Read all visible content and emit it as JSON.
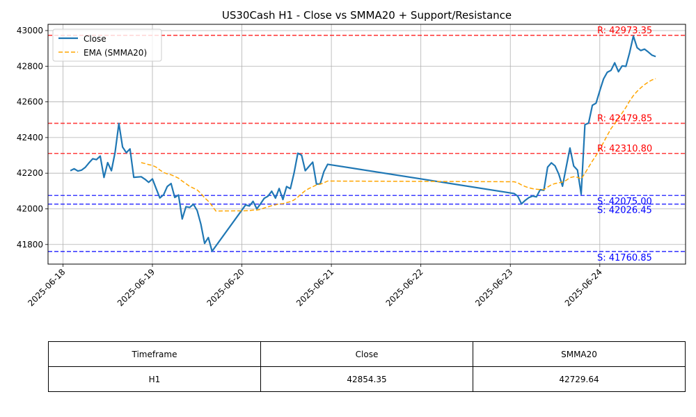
{
  "chart_data": {
    "type": "line",
    "title": "US30Cash H1 - Close vs SMMA20 + Support/Resistance",
    "xlabel": "",
    "ylabel": "",
    "x_ticks": [
      "2025-06-18",
      "2025-06-19",
      "2025-06-20",
      "2025-06-21",
      "2025-06-22",
      "2025-06-23",
      "2025-06-24"
    ],
    "y_ticks": [
      41800,
      42000,
      42200,
      42400,
      42600,
      42800,
      43000
    ],
    "xlim": [
      "2025-06-17 20:00",
      "2025-06-24 23:00"
    ],
    "ylim": [
      41690,
      43035
    ],
    "grid": true,
    "legend_position": "top-left",
    "series": [
      {
        "name": "Close",
        "color": "#1f77b4",
        "style": "solid",
        "points": [
          [
            "2025-06-18 02:00",
            42214
          ],
          [
            "2025-06-18 03:00",
            42225
          ],
          [
            "2025-06-18 04:00",
            42212
          ],
          [
            "2025-06-18 05:00",
            42217
          ],
          [
            "2025-06-18 06:00",
            42233
          ],
          [
            "2025-06-18 07:00",
            42258
          ],
          [
            "2025-06-18 08:00",
            42281
          ],
          [
            "2025-06-18 09:00",
            42276
          ],
          [
            "2025-06-18 10:00",
            42296
          ],
          [
            "2025-06-18 11:00",
            42176
          ],
          [
            "2025-06-18 12:00",
            42259
          ],
          [
            "2025-06-18 13:00",
            42214
          ],
          [
            "2025-06-18 14:00",
            42318
          ],
          [
            "2025-06-18 15:00",
            42479
          ],
          [
            "2025-06-18 16:00",
            42347
          ],
          [
            "2025-06-18 17:00",
            42315
          ],
          [
            "2025-06-18 18:00",
            42336
          ],
          [
            "2025-06-18 19:00",
            42177
          ],
          [
            "2025-06-18 21:00",
            42180
          ],
          [
            "2025-06-18 22:00",
            42166
          ],
          [
            "2025-06-18 23:00",
            42149
          ],
          [
            "2025-06-19 00:00",
            42168
          ],
          [
            "2025-06-19 01:00",
            42114
          ],
          [
            "2025-06-19 02:00",
            42061
          ],
          [
            "2025-06-19 03:00",
            42079
          ],
          [
            "2025-06-19 04:00",
            42126
          ],
          [
            "2025-06-19 05:00",
            42142
          ],
          [
            "2025-06-19 06:00",
            42064
          ],
          [
            "2025-06-19 07:00",
            42078
          ],
          [
            "2025-06-19 08:00",
            41943
          ],
          [
            "2025-06-19 09:00",
            42012
          ],
          [
            "2025-06-19 10:00",
            42008
          ],
          [
            "2025-06-19 11:00",
            42026
          ],
          [
            "2025-06-19 12:00",
            41990
          ],
          [
            "2025-06-19 13:00",
            41914
          ],
          [
            "2025-06-19 14:00",
            41806
          ],
          [
            "2025-06-19 15:00",
            41839
          ],
          [
            "2025-06-19 16:00",
            41762
          ],
          [
            "2025-06-20 01:00",
            42022
          ],
          [
            "2025-06-20 02:00",
            42016
          ],
          [
            "2025-06-20 03:00",
            42042
          ],
          [
            "2025-06-20 04:00",
            42000
          ],
          [
            "2025-06-20 05:00",
            42028
          ],
          [
            "2025-06-20 06:00",
            42059
          ],
          [
            "2025-06-20 07:00",
            42071
          ],
          [
            "2025-06-20 08:00",
            42099
          ],
          [
            "2025-06-20 09:00",
            42060
          ],
          [
            "2025-06-20 10:00",
            42114
          ],
          [
            "2025-06-20 11:00",
            42052
          ],
          [
            "2025-06-20 12:00",
            42125
          ],
          [
            "2025-06-20 13:00",
            42113
          ],
          [
            "2025-06-20 14:00",
            42201
          ],
          [
            "2025-06-20 15:00",
            42312
          ],
          [
            "2025-06-20 16:00",
            42301
          ],
          [
            "2025-06-20 17:00",
            42214
          ],
          [
            "2025-06-20 18:00",
            42238
          ],
          [
            "2025-06-20 19:00",
            42262
          ],
          [
            "2025-06-20 20:00",
            42139
          ],
          [
            "2025-06-20 21:00",
            42140
          ],
          [
            "2025-06-20 22:00",
            42209
          ],
          [
            "2025-06-20 23:00",
            42250
          ],
          [
            "2025-06-23 01:00",
            42086
          ],
          [
            "2025-06-23 02:00",
            42071
          ],
          [
            "2025-06-23 03:00",
            42028
          ],
          [
            "2025-06-23 04:00",
            42048
          ],
          [
            "2025-06-23 05:00",
            42063
          ],
          [
            "2025-06-23 06:00",
            42072
          ],
          [
            "2025-06-23 07:00",
            42067
          ],
          [
            "2025-06-23 08:00",
            42107
          ],
          [
            "2025-06-23 09:00",
            42104
          ],
          [
            "2025-06-23 10:00",
            42234
          ],
          [
            "2025-06-23 11:00",
            42258
          ],
          [
            "2025-06-23 12:00",
            42241
          ],
          [
            "2025-06-23 13:00",
            42194
          ],
          [
            "2025-06-23 14:00",
            42127
          ],
          [
            "2025-06-23 15:00",
            42236
          ],
          [
            "2025-06-23 16:00",
            42341
          ],
          [
            "2025-06-23 17:00",
            42240
          ],
          [
            "2025-06-23 18:00",
            42217
          ],
          [
            "2025-06-23 19:00",
            42082
          ],
          [
            "2025-06-23 20:00",
            42472
          ],
          [
            "2025-06-23 21:00",
            42481
          ],
          [
            "2025-06-23 22:00",
            42581
          ],
          [
            "2025-06-23 23:00",
            42593
          ],
          [
            "2025-06-24 00:00",
            42663
          ],
          [
            "2025-06-24 01:00",
            42729
          ],
          [
            "2025-06-24 02:00",
            42766
          ],
          [
            "2025-06-24 03:00",
            42777
          ],
          [
            "2025-06-24 04:00",
            42819
          ],
          [
            "2025-06-24 05:00",
            42769
          ],
          [
            "2025-06-24 06:00",
            42802
          ],
          [
            "2025-06-24 07:00",
            42799
          ],
          [
            "2025-06-24 08:00",
            42876
          ],
          [
            "2025-06-24 09:00",
            42969
          ],
          [
            "2025-06-24 10:00",
            42904
          ],
          [
            "2025-06-24 11:00",
            42888
          ],
          [
            "2025-06-24 12:00",
            42896
          ],
          [
            "2025-06-24 13:00",
            42880
          ],
          [
            "2025-06-24 14:00",
            42862
          ],
          [
            "2025-06-24 15:00",
            42854
          ]
        ]
      },
      {
        "name": "EMA (SMMA20)",
        "color": "#ffa500",
        "style": "dashed",
        "points": [
          [
            "2025-06-18 21:00",
            42259
          ],
          [
            "2025-06-18 22:00",
            42254
          ],
          [
            "2025-06-18 23:00",
            42248
          ],
          [
            "2025-06-19 00:00",
            42244
          ],
          [
            "2025-06-19 01:00",
            42234
          ],
          [
            "2025-06-19 02:00",
            42218
          ],
          [
            "2025-06-19 03:00",
            42204
          ],
          [
            "2025-06-19 04:00",
            42196
          ],
          [
            "2025-06-19 05:00",
            42191
          ],
          [
            "2025-06-19 06:00",
            42182
          ],
          [
            "2025-06-19 07:00",
            42172
          ],
          [
            "2025-06-19 08:00",
            42156
          ],
          [
            "2025-06-19 09:00",
            42141
          ],
          [
            "2025-06-19 10:00",
            42126
          ],
          [
            "2025-06-19 11:00",
            42116
          ],
          [
            "2025-06-19 12:00",
            42106
          ],
          [
            "2025-06-19 13:00",
            42087
          ],
          [
            "2025-06-19 14:00",
            42062
          ],
          [
            "2025-06-19 15:00",
            42043
          ],
          [
            "2025-06-19 16:00",
            42017
          ],
          [
            "2025-06-19 17:00",
            41988
          ],
          [
            "2025-06-20 01:00",
            41989
          ],
          [
            "2025-06-20 02:00",
            41990
          ],
          [
            "2025-06-20 03:00",
            41993
          ],
          [
            "2025-06-20 04:00",
            41993
          ],
          [
            "2025-06-20 05:00",
            41997
          ],
          [
            "2025-06-20 06:00",
            42005
          ],
          [
            "2025-06-20 07:00",
            42011
          ],
          [
            "2025-06-20 08:00",
            42018
          ],
          [
            "2025-06-20 09:00",
            42022
          ],
          [
            "2025-06-20 10:00",
            42028
          ],
          [
            "2025-06-20 11:00",
            42029
          ],
          [
            "2025-06-20 12:00",
            42035
          ],
          [
            "2025-06-20 13:00",
            42040
          ],
          [
            "2025-06-20 14:00",
            42050
          ],
          [
            "2025-06-20 15:00",
            42066
          ],
          [
            "2025-06-20 16:00",
            42085
          ],
          [
            "2025-06-20 17:00",
            42102
          ],
          [
            "2025-06-20 18:00",
            42114
          ],
          [
            "2025-06-20 19:00",
            42124
          ],
          [
            "2025-06-20 20:00",
            42134
          ],
          [
            "2025-06-20 21:00",
            42138
          ],
          [
            "2025-06-20 22:00",
            42146
          ],
          [
            "2025-06-20 23:00",
            42156
          ],
          [
            "2025-06-23 01:00",
            42152
          ],
          [
            "2025-06-23 02:00",
            42146
          ],
          [
            "2025-06-23 03:00",
            42134
          ],
          [
            "2025-06-23 04:00",
            42125
          ],
          [
            "2025-06-23 05:00",
            42118
          ],
          [
            "2025-06-23 06:00",
            42113
          ],
          [
            "2025-06-23 07:00",
            42110
          ],
          [
            "2025-06-23 08:00",
            42108
          ],
          [
            "2025-06-23 09:00",
            42108
          ],
          [
            "2025-06-23 10:00",
            42122
          ],
          [
            "2025-06-23 11:00",
            42135
          ],
          [
            "2025-06-23 12:00",
            42142
          ],
          [
            "2025-06-23 13:00",
            42146
          ],
          [
            "2025-06-23 14:00",
            42150
          ],
          [
            "2025-06-23 15:00",
            42160
          ],
          [
            "2025-06-23 16:00",
            42175
          ],
          [
            "2025-06-23 17:00",
            42180
          ],
          [
            "2025-06-23 18:00",
            42177
          ],
          [
            "2025-06-23 19:00",
            42168
          ],
          [
            "2025-06-23 20:00",
            42199
          ],
          [
            "2025-06-23 21:00",
            42234
          ],
          [
            "2025-06-23 22:00",
            42268
          ],
          [
            "2025-06-23 23:00",
            42299
          ],
          [
            "2025-06-24 00:00",
            42334
          ],
          [
            "2025-06-24 01:00",
            42373
          ],
          [
            "2025-06-24 02:00",
            42412
          ],
          [
            "2025-06-24 03:00",
            42450
          ],
          [
            "2025-06-24 04:00",
            42478
          ],
          [
            "2025-06-24 05:00",
            42507
          ],
          [
            "2025-06-24 06:00",
            42538
          ],
          [
            "2025-06-24 07:00",
            42569
          ],
          [
            "2025-06-24 08:00",
            42605
          ],
          [
            "2025-06-24 09:00",
            42635
          ],
          [
            "2025-06-24 10:00",
            42659
          ],
          [
            "2025-06-24 11:00",
            42679
          ],
          [
            "2025-06-24 12:00",
            42697
          ],
          [
            "2025-06-24 13:00",
            42711
          ],
          [
            "2025-06-24 14:00",
            42723
          ],
          [
            "2025-06-24 15:00",
            42730
          ]
        ]
      }
    ],
    "levels": [
      {
        "kind": "resistance",
        "value": 42973.35,
        "label": "R: 42973.35",
        "color": "#ff0000"
      },
      {
        "kind": "resistance",
        "value": 42479.85,
        "label": "R: 42479.85",
        "color": "#ff0000"
      },
      {
        "kind": "resistance",
        "value": 42310.8,
        "label": "R: 42310.80",
        "color": "#ff0000"
      },
      {
        "kind": "support",
        "value": 42075.0,
        "label": "S: 42075.00",
        "color": "#0000ff"
      },
      {
        "kind": "support",
        "value": 42026.45,
        "label": "S: 42026.45",
        "color": "#0000ff"
      },
      {
        "kind": "support",
        "value": 41760.85,
        "label": "S: 41760.85",
        "color": "#0000ff"
      }
    ]
  },
  "table": {
    "headers": [
      "Timeframe",
      "Close",
      "SMMA20"
    ],
    "row": [
      "H1",
      "42854.35",
      "42729.64"
    ]
  }
}
